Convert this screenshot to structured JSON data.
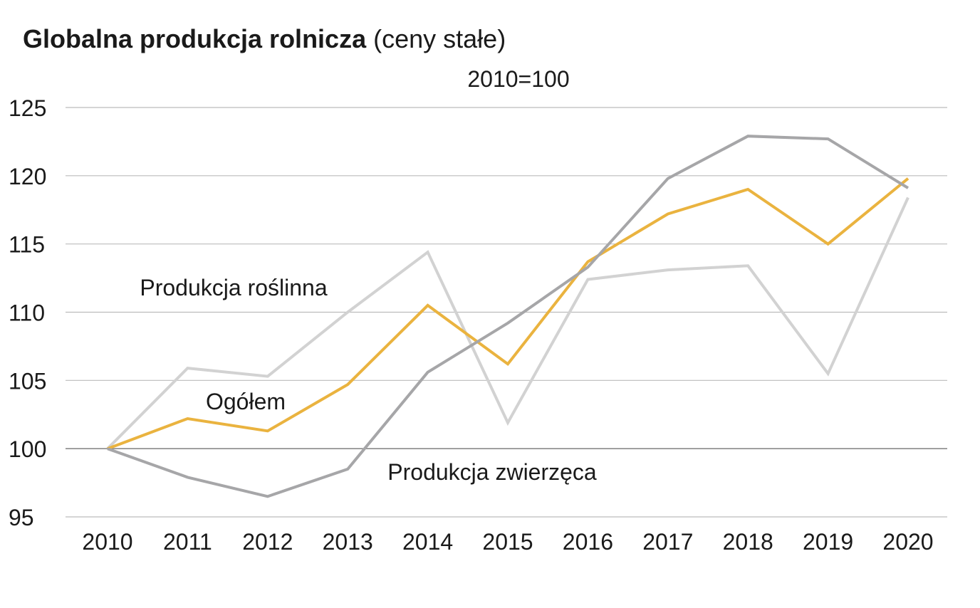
{
  "chart_data": {
    "type": "line",
    "title": "Globalna produkcja rolnicza",
    "subtitle": "(ceny stałe)",
    "annotation_index": "2010=100",
    "xlabel": "",
    "ylabel": "",
    "categories": [
      "2010",
      "2011",
      "2012",
      "2013",
      "2014",
      "2015",
      "2016",
      "2017",
      "2018",
      "2019",
      "2020"
    ],
    "ylim": [
      95,
      125
    ],
    "yticks": [
      95,
      100,
      105,
      110,
      115,
      120,
      125
    ],
    "grid": true,
    "legend": "none (series labelled directly on plot)",
    "series": [
      {
        "name": "Produkcja roślinna",
        "color": "#d2d2d2",
        "values": [
          100,
          105.9,
          105.3,
          110.0,
          114.4,
          101.9,
          112.4,
          113.1,
          113.4,
          105.5,
          118.4
        ]
      },
      {
        "name": "Ogółem",
        "color": "#eab33f",
        "values": [
          100,
          102.2,
          101.3,
          104.7,
          110.5,
          106.2,
          113.7,
          117.2,
          119.0,
          115.0,
          119.8
        ]
      },
      {
        "name": "Produkcja zwierzęca",
        "color": "#a6a6a8",
        "values": [
          100,
          97.9,
          96.5,
          98.5,
          105.6,
          109.2,
          113.3,
          119.8,
          122.9,
          122.7,
          119.1
        ]
      }
    ]
  }
}
